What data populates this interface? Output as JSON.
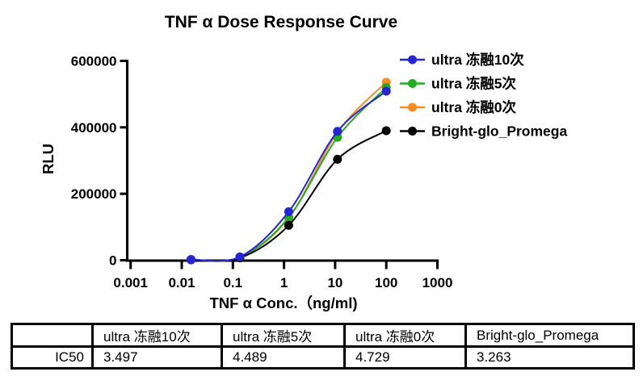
{
  "figure": {
    "title": "TNF α Dose Response Curve"
  },
  "chart_data": {
    "type": "line",
    "title": "TNF α Dose Response Curve",
    "xlabel": "TNF α Conc.（ng/ml)",
    "ylabel": "RLU",
    "xscale": "log",
    "x_ticks": [
      0.001,
      0.01,
      0.1,
      1,
      10,
      100,
      1000
    ],
    "x_tick_labels": [
      "0.001",
      "0.01",
      "0.1",
      "1",
      "10",
      "100",
      "1000"
    ],
    "y_ticks": [
      0,
      200000,
      400000,
      600000
    ],
    "y_tick_labels": [
      "0",
      "200000",
      "400000",
      "600000"
    ],
    "ylim": [
      0,
      600000
    ],
    "xlim": [
      0.001,
      1000
    ],
    "grid": false,
    "legend_position": "top-right",
    "x": [
      0.0152,
      0.137,
      1.235,
      11.11,
      100
    ],
    "series": [
      {
        "name": "ultra 冻融10次",
        "color": "#2525D5",
        "values": [
          2000,
          10000,
          146000,
          388000,
          509000
        ]
      },
      {
        "name": "ultra 冻融5次",
        "color": "#22AC22",
        "values": [
          1800,
          9000,
          129000,
          370000,
          520000
        ]
      },
      {
        "name": "ultra 冻融0次",
        "color": "#F68D1E",
        "values": [
          1800,
          9000,
          127000,
          385000,
          536000
        ]
      },
      {
        "name": "Bright-glo_Promega",
        "color": "#000000",
        "values": [
          1200,
          7000,
          105000,
          304000,
          390000
        ]
      }
    ],
    "paint_order": [
      2,
      1,
      3,
      0
    ]
  },
  "table": {
    "headers": [
      "",
      "ultra 冻融10次",
      "ultra 冻融5次",
      "ultra 冻融0次",
      "Bright-glo_Promega"
    ],
    "rows": [
      {
        "label": "IC50",
        "values": [
          "3.497",
          "4.489",
          "4.729",
          "3.263"
        ]
      }
    ]
  }
}
